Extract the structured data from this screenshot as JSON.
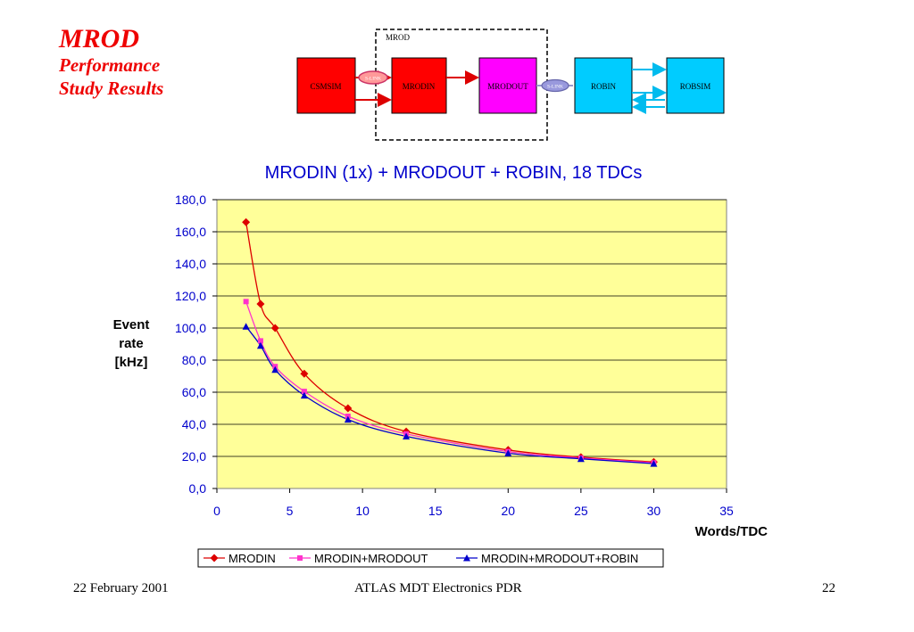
{
  "slide": {
    "title": "MROD",
    "subtitle_line1": "Performance",
    "subtitle_line2": "Study Results"
  },
  "diagram": {
    "group_label": "MROD",
    "blocks": [
      "CSMSIM",
      "MRODIN",
      "MRODOUT",
      "ROBIN",
      "ROBSIM"
    ],
    "link1_label": "S-LINK",
    "link2_label": "S-LINK",
    "colors": {
      "csmsim": "#ff0000",
      "mrodin": "#ff0000",
      "mrodout": "#ff00ff",
      "robin": "#00ccff",
      "robsim": "#00ccff"
    }
  },
  "chart_data": {
    "type": "line",
    "title": "MRODIN (1x) + MRODOUT + ROBIN, 18 TDCs",
    "xlabel": "Words/TDC",
    "ylabel_lines": [
      "Event",
      "rate",
      "[kHz]"
    ],
    "xlim": [
      0,
      35
    ],
    "ylim": [
      0,
      180
    ],
    "x_ticks": [
      "0",
      "5",
      "10",
      "15",
      "20",
      "25",
      "30",
      "35"
    ],
    "y_ticks": [
      "0,0",
      "20,0",
      "40,0",
      "60,0",
      "80,0",
      "100,0",
      "120,0",
      "140,0",
      "160,0",
      "180,0"
    ],
    "x": [
      2,
      3,
      4,
      6,
      9,
      13,
      20,
      25,
      30
    ],
    "series": [
      {
        "name": "MRODIN",
        "color": "#dd0000",
        "marker": "diamond",
        "values": [
          166.0,
          115.0,
          100.0,
          71.5,
          50.0,
          35.5,
          24.0,
          19.5,
          16.5
        ]
      },
      {
        "name": "MRODIN+MRODOUT",
        "color": "#ff33cc",
        "marker": "square",
        "values": [
          116.5,
          92.0,
          76.0,
          60.5,
          45.0,
          34.0,
          23.0,
          19.0,
          16.0
        ]
      },
      {
        "name": "MRODIN+MRODOUT+ROBIN",
        "color": "#0000cc",
        "marker": "triangle",
        "values": [
          101.0,
          89.0,
          74.0,
          58.0,
          43.0,
          32.5,
          22.0,
          18.5,
          15.5
        ]
      }
    ],
    "plot_background": "#ffff99",
    "grid": "horizontal",
    "legend_position": "bottom"
  },
  "footer": {
    "date": "22 February 2001",
    "center": "ATLAS MDT Electronics PDR",
    "page": "22"
  }
}
